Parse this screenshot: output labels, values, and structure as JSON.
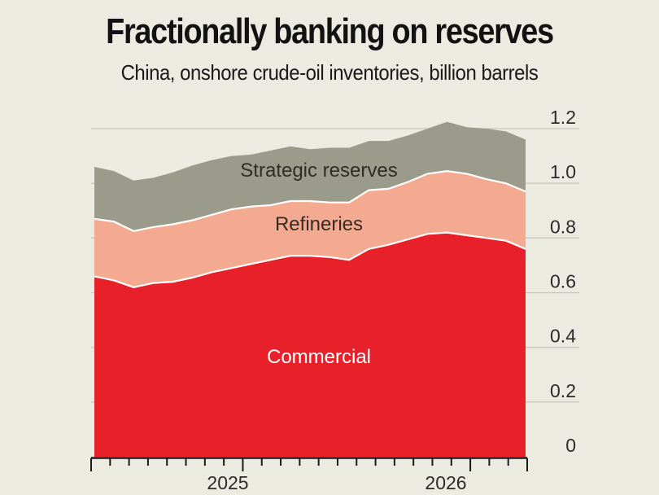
{
  "title": "Fractionally banking on reserves",
  "subtitle": "China, onshore crude-oil inventories, billion barrels",
  "chart_data": {
    "type": "area",
    "stacked": true,
    "title": "Fractionally banking on reserves",
    "subtitle": "China, onshore crude-oil inventories, billion barrels",
    "xlabel": "",
    "ylabel": "",
    "ylim": [
      0,
      1.2
    ],
    "y_ticks": [
      0,
      0.2,
      0.4,
      0.6,
      0.8,
      1.0,
      1.2
    ],
    "y_tick_labels": [
      "0",
      "0.2",
      "0.4",
      "0.6",
      "0.8",
      "1.0",
      "1.2"
    ],
    "x_tick_labels": [
      "2025",
      "2026"
    ],
    "x_period_count": 23,
    "grid": true,
    "y_axis_position": "right",
    "x": [
      0,
      1,
      2,
      3,
      4,
      5,
      6,
      7,
      8,
      9,
      10,
      11,
      12,
      13,
      14,
      15,
      16,
      17,
      18,
      19,
      20,
      21,
      22
    ],
    "series": [
      {
        "name": "Commercial",
        "color": "#e8202a",
        "values": [
          0.66,
          0.645,
          0.62,
          0.635,
          0.64,
          0.655,
          0.675,
          0.69,
          0.705,
          0.72,
          0.735,
          0.735,
          0.73,
          0.72,
          0.76,
          0.775,
          0.795,
          0.815,
          0.82,
          0.81,
          0.8,
          0.79,
          0.76
        ]
      },
      {
        "name": "Refineries",
        "color": "#f4a991",
        "values": [
          0.21,
          0.215,
          0.205,
          0.205,
          0.21,
          0.21,
          0.21,
          0.215,
          0.21,
          0.2,
          0.2,
          0.2,
          0.2,
          0.21,
          0.215,
          0.205,
          0.21,
          0.22,
          0.225,
          0.225,
          0.215,
          0.21,
          0.21
        ]
      },
      {
        "name": "Strategic reserves",
        "color": "#9b9b8b",
        "values": [
          0.19,
          0.185,
          0.185,
          0.18,
          0.19,
          0.2,
          0.2,
          0.195,
          0.19,
          0.2,
          0.2,
          0.19,
          0.2,
          0.2,
          0.18,
          0.175,
          0.17,
          0.165,
          0.18,
          0.17,
          0.185,
          0.19,
          0.19
        ]
      }
    ]
  }
}
